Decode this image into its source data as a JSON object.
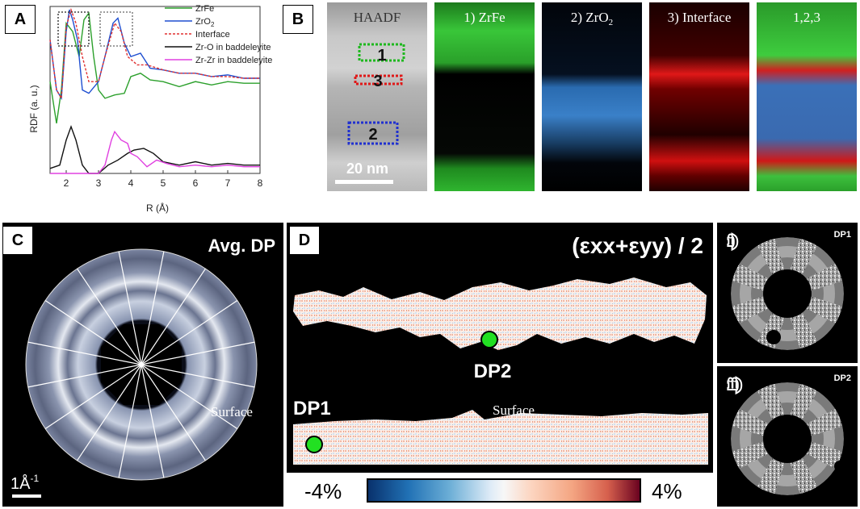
{
  "panels": {
    "a": {
      "letter": "A"
    },
    "b": {
      "letter": "B"
    },
    "c": {
      "letter": "C"
    },
    "d": {
      "letter": "D"
    }
  },
  "rdf": {
    "ylabel": "RDF (a. u.)",
    "xlabel": "R (Å)",
    "xticks": [
      "2",
      "3",
      "4",
      "5",
      "6",
      "7",
      "8"
    ],
    "legend": [
      {
        "name": "ZrFe",
        "color": "#2ca02c",
        "dash": false
      },
      {
        "name": "ZrO",
        "sub": "2",
        "color": "#1f4fd1",
        "dash": false
      },
      {
        "name": "Interface",
        "color": "#e03030",
        "dash": true
      },
      {
        "name": "Zr-O in baddeleyite",
        "color": "#111111",
        "dash": false
      },
      {
        "name": "Zr-Zr in baddeleyite",
        "color": "#e040e0",
        "dash": false
      }
    ]
  },
  "chart_data": {
    "type": "line",
    "title": "",
    "xlabel": "R (Å)",
    "ylabel": "RDF (a. u.)",
    "xlim": [
      1.5,
      8
    ],
    "series": [
      {
        "name": "ZrFe",
        "x": [
          1.5,
          1.7,
          1.85,
          2.0,
          2.2,
          2.4,
          2.55,
          2.7,
          2.85,
          3.0,
          3.2,
          3.5,
          3.8,
          4.0,
          4.3,
          4.6,
          5.0,
          5.5,
          6.0,
          6.5,
          7.0,
          7.5,
          8.0
        ],
        "y": [
          0.55,
          0.3,
          0.5,
          0.9,
          0.85,
          0.7,
          0.92,
          0.96,
          0.7,
          0.5,
          0.45,
          0.47,
          0.48,
          0.58,
          0.6,
          0.56,
          0.55,
          0.52,
          0.55,
          0.53,
          0.55,
          0.54,
          0.54
        ]
      },
      {
        "name": "ZrO2",
        "x": [
          1.5,
          1.7,
          1.85,
          2.0,
          2.1,
          2.2,
          2.35,
          2.5,
          2.7,
          3.0,
          3.2,
          3.45,
          3.6,
          3.8,
          4.0,
          4.3,
          4.6,
          5.0,
          5.5,
          6.0,
          6.5,
          7.0,
          7.5,
          8.0
        ],
        "y": [
          0.8,
          0.5,
          0.45,
          0.85,
          0.98,
          0.92,
          0.8,
          0.5,
          0.48,
          0.55,
          0.7,
          0.9,
          0.93,
          0.78,
          0.7,
          0.72,
          0.63,
          0.62,
          0.6,
          0.6,
          0.58,
          0.59,
          0.57,
          0.57
        ]
      },
      {
        "name": "Interface",
        "x": [
          1.5,
          1.7,
          1.85,
          2.0,
          2.15,
          2.3,
          2.5,
          2.7,
          3.0,
          3.2,
          3.5,
          3.7,
          3.9,
          4.2,
          4.5,
          5.0,
          5.5,
          6.0,
          6.5,
          7.0,
          7.5,
          8.0
        ],
        "y": [
          0.8,
          0.5,
          0.45,
          0.88,
          0.98,
          0.9,
          0.7,
          0.55,
          0.55,
          0.7,
          0.9,
          0.85,
          0.7,
          0.65,
          0.65,
          0.62,
          0.6,
          0.6,
          0.58,
          0.58,
          0.57,
          0.57
        ]
      },
      {
        "name": "Zr-O in baddeleyite",
        "x": [
          1.5,
          1.8,
          2.0,
          2.15,
          2.3,
          2.5,
          2.7,
          3.0,
          3.3,
          3.6,
          3.9,
          4.1,
          4.4,
          4.7,
          5.0,
          5.5,
          6.0,
          6.5,
          7.0,
          7.5,
          8.0
        ],
        "y": [
          0.03,
          0.05,
          0.2,
          0.28,
          0.2,
          0.05,
          0.0,
          0.0,
          0.05,
          0.08,
          0.12,
          0.14,
          0.15,
          0.12,
          0.07,
          0.05,
          0.07,
          0.05,
          0.06,
          0.05,
          0.05
        ]
      },
      {
        "name": "Zr-Zr in baddeleyite",
        "x": [
          1.5,
          2.5,
          3.0,
          3.2,
          3.4,
          3.5,
          3.7,
          3.9,
          4.0,
          4.2,
          4.5,
          4.8,
          5.1,
          5.5,
          6.0,
          6.5,
          7.0,
          7.5,
          8.0
        ],
        "y": [
          0.0,
          0.0,
          0.0,
          0.05,
          0.2,
          0.25,
          0.2,
          0.18,
          0.12,
          0.1,
          0.04,
          0.08,
          0.06,
          0.04,
          0.05,
          0.04,
          0.05,
          0.04,
          0.04
        ]
      }
    ]
  },
  "stem": {
    "tiles": [
      {
        "label": "HAADF",
        "sub": ""
      },
      {
        "label": "1) ZrFe",
        "sub": ""
      },
      {
        "label": "2) ZrO",
        "sub": "2"
      },
      {
        "label": "3) Interface",
        "sub": ""
      },
      {
        "label": "1,2,3",
        "sub": ""
      }
    ],
    "box_labels": [
      "1",
      "3",
      "2"
    ],
    "scalebar": "20 nm"
  },
  "dp": {
    "title": "Avg. DP",
    "surface": "Surface",
    "scale": "1Å",
    "scale_sup": "-1"
  },
  "strain": {
    "title": "(εxx+εyy) / 2",
    "dp1": "DP1",
    "dp2": "DP2",
    "surface": "Surface",
    "cbar_min": "-4%",
    "cbar_max": "4%"
  },
  "insets": [
    {
      "roman": "i)",
      "tag": "DP1"
    },
    {
      "roman": "ii)",
      "tag": "DP2"
    }
  ]
}
